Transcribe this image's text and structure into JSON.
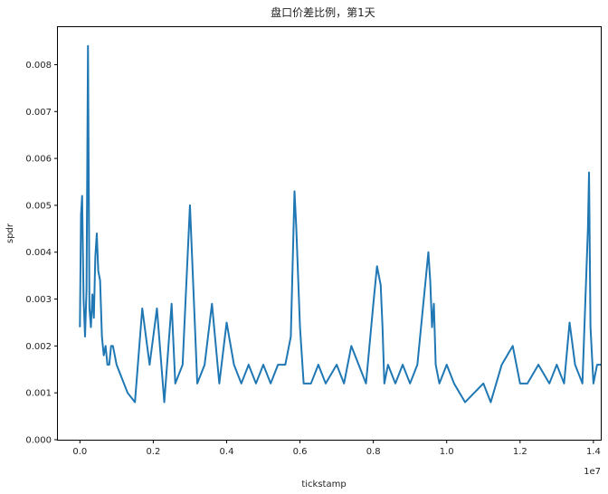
{
  "chart_data": {
    "type": "line",
    "title": "盘口价差比例，第1天",
    "xlabel": "tickstamp",
    "ylabel": "spdr",
    "x_offset_label": "1e7",
    "xlim": [
      -0.06,
      1.42
    ],
    "ylim": [
      0.0,
      0.0088
    ],
    "x_tick_values": [
      0.0,
      0.2,
      0.4,
      0.6,
      0.8,
      1.0,
      1.2,
      1.4
    ],
    "x_tick_labels": [
      "0.0",
      "0.2",
      "0.4",
      "0.6",
      "0.8",
      "1.0",
      "1.2",
      "1.4"
    ],
    "y_tick_values": [
      0.0,
      0.001,
      0.002,
      0.003,
      0.004,
      0.005,
      0.006,
      0.007,
      0.008
    ],
    "y_tick_labels": [
      "0.000",
      "0.001",
      "0.002",
      "0.003",
      "0.004",
      "0.005",
      "0.006",
      "0.007",
      "0.008"
    ],
    "grid": false,
    "series": [
      {
        "color": "#1f77b4",
        "x": [
          0.0,
          0.003,
          0.006,
          0.01,
          0.014,
          0.018,
          0.022,
          0.026,
          0.03,
          0.034,
          0.038,
          0.042,
          0.046,
          0.05,
          0.055,
          0.06,
          0.065,
          0.07,
          0.075,
          0.08,
          0.085,
          0.09,
          0.1,
          0.11,
          0.12,
          0.13,
          0.15,
          0.17,
          0.19,
          0.21,
          0.23,
          0.25,
          0.26,
          0.28,
          0.3,
          0.32,
          0.34,
          0.36,
          0.38,
          0.4,
          0.42,
          0.44,
          0.46,
          0.48,
          0.5,
          0.52,
          0.54,
          0.56,
          0.575,
          0.585,
          0.59,
          0.6,
          0.61,
          0.63,
          0.65,
          0.67,
          0.7,
          0.72,
          0.74,
          0.76,
          0.78,
          0.8,
          0.81,
          0.82,
          0.825,
          0.83,
          0.84,
          0.86,
          0.88,
          0.9,
          0.92,
          0.94,
          0.95,
          0.955,
          0.96,
          0.965,
          0.97,
          0.98,
          1.0,
          1.02,
          1.05,
          1.1,
          1.12,
          1.15,
          1.18,
          1.2,
          1.22,
          1.25,
          1.28,
          1.3,
          1.32,
          1.335,
          1.35,
          1.37,
          1.385,
          1.388,
          1.392,
          1.4,
          1.41,
          1.42
        ],
        "y": [
          0.0024,
          0.0048,
          0.0052,
          0.003,
          0.0022,
          0.0032,
          0.0084,
          0.0028,
          0.0024,
          0.0031,
          0.0026,
          0.0039,
          0.0044,
          0.0036,
          0.0034,
          0.0022,
          0.0018,
          0.002,
          0.0016,
          0.0016,
          0.002,
          0.002,
          0.0016,
          0.0014,
          0.0012,
          0.001,
          0.0008,
          0.0028,
          0.0016,
          0.0028,
          0.0008,
          0.0029,
          0.0012,
          0.0016,
          0.005,
          0.0012,
          0.0016,
          0.0029,
          0.0012,
          0.0025,
          0.0016,
          0.0012,
          0.0016,
          0.0012,
          0.0016,
          0.0012,
          0.0016,
          0.0016,
          0.0022,
          0.0053,
          0.0045,
          0.0024,
          0.0012,
          0.0012,
          0.0016,
          0.0012,
          0.0016,
          0.0012,
          0.002,
          0.0016,
          0.0012,
          0.0029,
          0.0037,
          0.0033,
          0.0024,
          0.0012,
          0.0016,
          0.0012,
          0.0016,
          0.0012,
          0.0016,
          0.0032,
          0.004,
          0.0034,
          0.0024,
          0.0029,
          0.0016,
          0.0012,
          0.0016,
          0.0012,
          0.0008,
          0.0012,
          0.0008,
          0.0016,
          0.002,
          0.0012,
          0.0012,
          0.0016,
          0.0012,
          0.0016,
          0.0012,
          0.0025,
          0.0016,
          0.0012,
          0.0045,
          0.0057,
          0.0024,
          0.0012,
          0.0016,
          0.0016
        ]
      }
    ]
  }
}
